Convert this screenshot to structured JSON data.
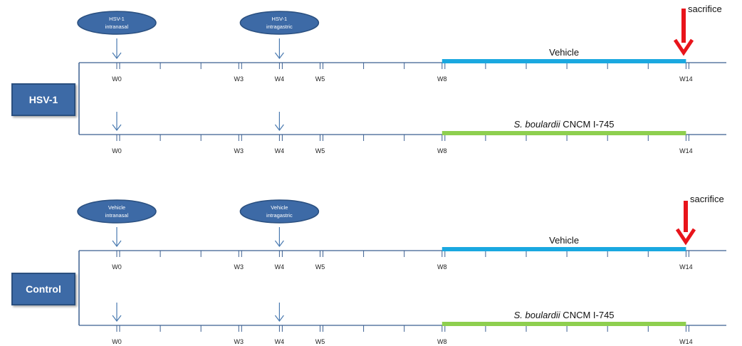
{
  "colors": {
    "axis": "#3b5f91",
    "vehicle_bar": "#1aa8e0",
    "boulardii_bar": "#8ecf4f",
    "sacrifice_arrow": "#e8141b",
    "oval_fill": "#3d6aa6",
    "oval_stroke": "#2a4f7f",
    "inoculation_arrow": "#4a7ab0"
  },
  "sections": [
    {
      "group_label": "HSV-1",
      "ovals": [
        {
          "line1": "HSV-1",
          "line2": "intranasal"
        },
        {
          "line1": "HSV-1",
          "line2": "intragastric"
        }
      ],
      "sacrifice_label": "sacrifice",
      "rows": [
        {
          "bar_kind": "vehicle",
          "bar_label_italic": "",
          "bar_label_plain": "Vehicle",
          "tick_labels": [
            "W0",
            "W3",
            "W4",
            "W5",
            "W8",
            "W14"
          ]
        },
        {
          "bar_kind": "boulardii",
          "bar_label_italic": "S. boulardii",
          "bar_label_plain": " CNCM I-745",
          "tick_labels": [
            "W0",
            "W3",
            "W4",
            "W5",
            "W8",
            "W14"
          ]
        }
      ]
    },
    {
      "group_label": "Control",
      "ovals": [
        {
          "line1": "Vehicle",
          "line2": "intranasal"
        },
        {
          "line1": "Vehicle",
          "line2": "intragastric"
        }
      ],
      "sacrifice_label": "sacrifice",
      "rows": [
        {
          "bar_kind": "vehicle",
          "bar_label_italic": "",
          "bar_label_plain": "Vehicle",
          "tick_labels": [
            "W0",
            "W3",
            "W4",
            "W5",
            "W8",
            "W14"
          ]
        },
        {
          "bar_kind": "boulardii",
          "bar_label_italic": "S. boulardii",
          "bar_label_plain": " CNCM I-745",
          "tick_labels": [
            "W0",
            "W3",
            "W4",
            "W5",
            "W8",
            "W14"
          ]
        }
      ]
    }
  ]
}
